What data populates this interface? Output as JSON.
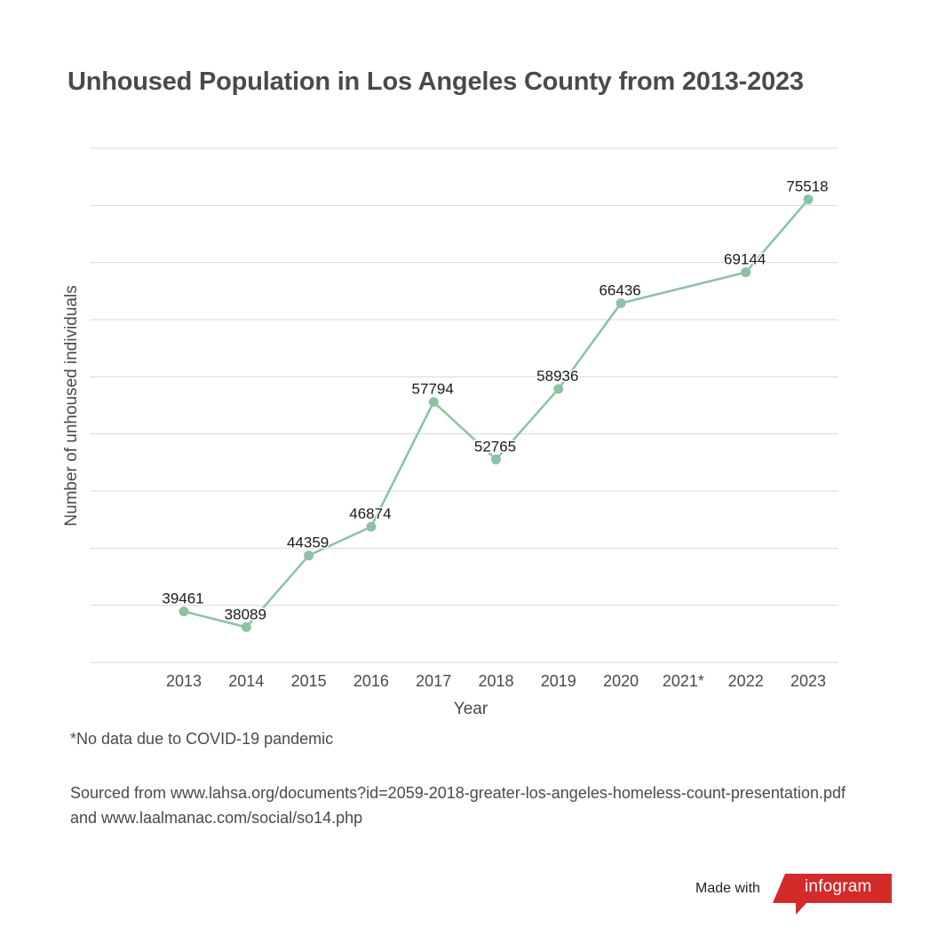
{
  "title": "Unhoused Population in Los Angeles County from 2013-2023",
  "footnote": "*No data due to COVID-19 pandemic",
  "source": "Sourced from www.lahsa.org/documents?id=2059-2018-greater-los-angeles-homeless-count-presentation.pdf and www.laalmanac.com/social/so14.php",
  "branding": {
    "made_with": "Made with",
    "logo_text": "infogram",
    "logo_color": "#d42a2a"
  },
  "chart_data": {
    "type": "line",
    "title": "Unhoused Population in Los Angeles County from 2013-2023",
    "xlabel": "Year",
    "ylabel": "Number of unhoused individuals",
    "categories": [
      "2013",
      "2014",
      "2015",
      "2016",
      "2017",
      "2018",
      "2019",
      "2020",
      "2021*",
      "2022",
      "2023"
    ],
    "series": [
      {
        "values": [
          39461,
          38089,
          44359,
          46874,
          57794,
          52765,
          58936,
          66436,
          null,
          69144,
          75518
        ],
        "color": "#8cc2a4"
      }
    ],
    "connect_gaps": true,
    "ylim": [
      35000,
      80000
    ],
    "y_gridlines": [
      35000,
      40000,
      45000,
      50000,
      55000,
      60000,
      65000,
      70000,
      75000,
      80000
    ],
    "y_tick_labels_shown": false,
    "data_labels": true,
    "grid": true,
    "legend": "none",
    "grid_color": "#d8d8d8",
    "text_color": "#4a4a4a"
  }
}
